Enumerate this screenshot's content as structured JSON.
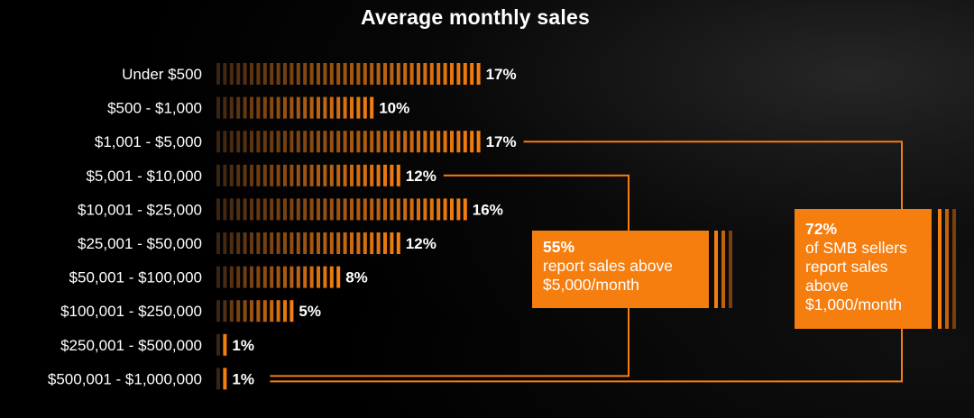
{
  "chart_data": {
    "type": "bar",
    "orientation": "horizontal",
    "title": "Average monthly sales",
    "categories": [
      "Under $500",
      "$500 - $1,000",
      "$1,001 - $5,000",
      "$5,001 - $10,000",
      "$10,001 - $25,000",
      "$25,001 - $50,000",
      "$50,001 - $100,000",
      "$100,001 - $250,000",
      "$250,001 - $500,000",
      "$500,001 - $1,000,000"
    ],
    "values": [
      17,
      10,
      17,
      12,
      16,
      12,
      8,
      5,
      1,
      1
    ],
    "value_labels": [
      "17%",
      "10%",
      "17%",
      "12%",
      "16%",
      "12%",
      "8%",
      "5%",
      "1%",
      "1%"
    ],
    "unit": "%",
    "xlim": [
      0,
      17
    ],
    "colors": {
      "bar": "#f57e0f",
      "bar_fade": "#3a2412",
      "callout": "#f57e0f",
      "connector": "#f57e0f",
      "text": "#ffffff",
      "background": "#000000"
    },
    "annotations": [
      {
        "id": "callout-55",
        "pct": "55%",
        "text": "report sales above $5,000/month",
        "covers_categories": [
          "$5,001 - $10,000",
          "$500,001 - $1,000,000"
        ]
      },
      {
        "id": "callout-72",
        "pct": "72%",
        "text": "of SMB sellers report sales above $1,000/month",
        "covers_categories": [
          "$1,001 - $5,000",
          "$500,001 - $1,000,000"
        ]
      }
    ]
  }
}
